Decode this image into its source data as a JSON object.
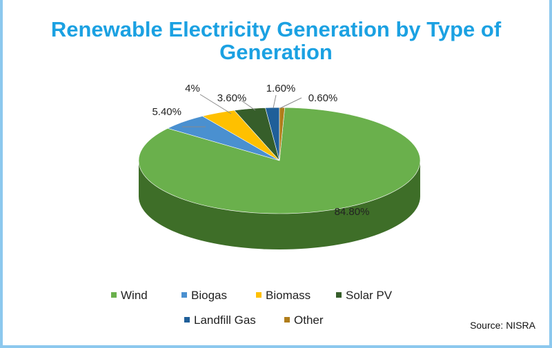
{
  "chart_data": {
    "type": "pie",
    "title": "Renewable Electricity Generation by Type of Generation",
    "slices": [
      {
        "name": "Wind",
        "value": 84.8,
        "label": "84.80%",
        "color": "#6ab04c",
        "side": "#3e6e28"
      },
      {
        "name": "Biogas",
        "value": 5.4,
        "label": "5.40%",
        "color": "#4a90d0",
        "side": "#2d5f8f"
      },
      {
        "name": "Biomass",
        "value": 4,
        "label": "4%",
        "color": "#ffc000",
        "side": "#b38700"
      },
      {
        "name": "Solar PV",
        "value": 3.6,
        "label": "3.60%",
        "color": "#365e2a",
        "side": "#223d1b"
      },
      {
        "name": "Landfill Gas",
        "value": 1.6,
        "label": "1.60%",
        "color": "#1f5f99",
        "side": "#133d63"
      },
      {
        "name": "Other",
        "value": 0.6,
        "label": "0.60%",
        "color": "#b07d1a",
        "side": "#7a5610"
      }
    ],
    "legend_position": "bottom"
  },
  "source": "Source: NISRA"
}
